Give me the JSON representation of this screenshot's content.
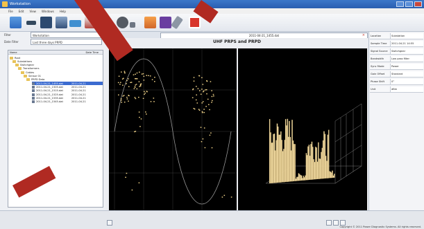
{
  "window": {
    "title": "Workstation"
  },
  "menu": [
    "File",
    "Edit",
    "View",
    "Windows",
    "Help"
  ],
  "toolbar": {
    "icons": [
      "open-folder-icon",
      "save-icon",
      "save-icon",
      "print-icon",
      "export-icon",
      "database-icon",
      "sensor-icon",
      "sensor-icon",
      "home-icon",
      "report-icon",
      "tools-icon",
      "record-icon"
    ]
  },
  "filters": {
    "search_label": "Filter",
    "search_value": "Workstation",
    "date_label": "Date Filter",
    "date_value": "Last three days PRPD"
  },
  "tree": {
    "header_left": "Name",
    "header_right": "Date Time",
    "items": [
      {
        "label": "Root",
        "icon": "folder"
      },
      {
        "label": "Substations",
        "icon": "folder"
      },
      {
        "label": "Switchgear",
        "icon": "folder"
      },
      {
        "label": "Transformers",
        "icon": "folder"
      },
      {
        "label": "Cables",
        "icon": "folder"
      },
      {
        "label": "Sensor 01",
        "icon": "folder"
      },
      {
        "label": "PRPD Data",
        "icon": "folder"
      },
      {
        "label": "2011-04-21_1455.dat",
        "date": "2011-04-21",
        "icon": "file",
        "selected": true
      },
      {
        "label": "2011-04-21_1505.dat",
        "date": "2011-04-21",
        "icon": "file"
      },
      {
        "label": "2011-04-21_1515.dat",
        "date": "2011-04-21",
        "icon": "file"
      },
      {
        "label": "2011-04-21_1525.dat",
        "date": "2011-04-21",
        "icon": "file"
      },
      {
        "label": "2011-04-21_1535.dat",
        "date": "2011-04-21",
        "icon": "file"
      },
      {
        "label": "2011-04-21_1545.dat",
        "date": "2011-04-21",
        "icon": "file"
      }
    ]
  },
  "tab": {
    "label": "2011-04-21_1455.dat"
  },
  "plot": {
    "title": "UHF PRPS and PRPD"
  },
  "properties": [
    {
      "key": "Location",
      "value": "Substation"
    },
    {
      "key": "Sample Time",
      "value": "2011-04-21 14:55"
    },
    {
      "key": "Signal Source",
      "value": "Switchgear"
    },
    {
      "key": "Bandwidth",
      "value": "Low pass filter"
    },
    {
      "key": "Sync Mode",
      "value": "Power"
    },
    {
      "key": "Gain Offset",
      "value": "Standard"
    },
    {
      "key": "Phase Shift",
      "value": "0°"
    },
    {
      "key": "Unit",
      "value": "dBm"
    }
  ],
  "status": {
    "copyright": "Copyright © 2011 Power Diagnostix Systems. All rights reserved."
  },
  "colors": {
    "accent": "#3b6bd0",
    "points": "#f3d58a",
    "bars": "#f0d9a0"
  }
}
